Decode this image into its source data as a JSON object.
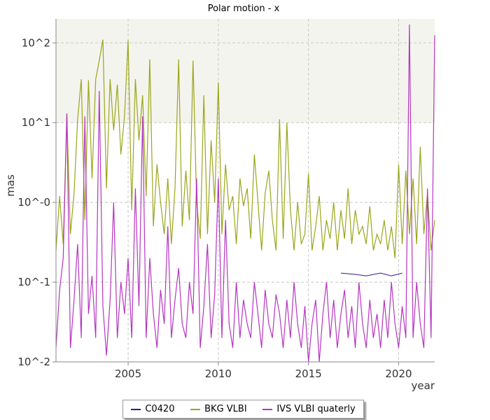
{
  "chart_data": {
    "type": "line",
    "title": "Polar motion - x",
    "xlabel": "year",
    "ylabel": "mas",
    "yscale": "log",
    "xlim": [
      2001.0,
      2022.0
    ],
    "ylim": [
      0.01,
      200
    ],
    "x_ticks": [
      2005,
      2010,
      2015,
      2020
    ],
    "x_tick_labels": [
      "2005",
      "2010",
      "2015",
      "2020"
    ],
    "y_ticks": [
      0.01,
      0.1,
      1,
      10,
      100
    ],
    "y_tick_labels": [
      "10^-2",
      "10^-1",
      "10^-0",
      "10^1",
      "10^2"
    ],
    "grid": true,
    "shaded_band": [
      10,
      200
    ],
    "legend_position": "bottom",
    "series": [
      {
        "name": "C0420",
        "color": "#2e1a8e",
        "points": [
          [
            2016.8,
            0.13
          ],
          [
            2017.6,
            0.125
          ],
          [
            2018.2,
            0.12
          ],
          [
            2019.0,
            0.13
          ],
          [
            2019.6,
            0.12
          ],
          [
            2020.2,
            0.13
          ]
        ]
      },
      {
        "name": "BKG VLBI",
        "color": "#9aa61a",
        "points": [
          [
            2001.0,
            0.25
          ],
          [
            2001.2,
            1.2
          ],
          [
            2001.4,
            0.3
          ],
          [
            2001.6,
            13.0
          ],
          [
            2001.8,
            0.4
          ],
          [
            2002.0,
            1.3
          ],
          [
            2002.2,
            11.0
          ],
          [
            2002.4,
            35.0
          ],
          [
            2002.6,
            0.6
          ],
          [
            2002.8,
            34.0
          ],
          [
            2003.0,
            2.0
          ],
          [
            2003.2,
            35.0
          ],
          [
            2003.4,
            60.0
          ],
          [
            2003.6,
            110.0
          ],
          [
            2003.8,
            1.5
          ],
          [
            2004.0,
            35.0
          ],
          [
            2004.2,
            8.0
          ],
          [
            2004.4,
            30.0
          ],
          [
            2004.6,
            4.0
          ],
          [
            2004.8,
            12.0
          ],
          [
            2005.0,
            108.0
          ],
          [
            2005.2,
            0.8
          ],
          [
            2005.4,
            35.0
          ],
          [
            2005.6,
            6.0
          ],
          [
            2005.8,
            22.0
          ],
          [
            2006.0,
            1.2
          ],
          [
            2006.2,
            62.0
          ],
          [
            2006.4,
            0.5
          ],
          [
            2006.6,
            3.0
          ],
          [
            2006.8,
            1.0
          ],
          [
            2007.0,
            0.4
          ],
          [
            2007.2,
            2.0
          ],
          [
            2007.4,
            0.3
          ],
          [
            2007.6,
            1.5
          ],
          [
            2007.8,
            62.0
          ],
          [
            2008.0,
            0.5
          ],
          [
            2008.2,
            2.5
          ],
          [
            2008.4,
            0.6
          ],
          [
            2008.6,
            60.0
          ],
          [
            2008.8,
            1.0
          ],
          [
            2009.0,
            0.35
          ],
          [
            2009.2,
            22.0
          ],
          [
            2009.4,
            0.4
          ],
          [
            2009.6,
            6.0
          ],
          [
            2009.8,
            1.0
          ],
          [
            2010.0,
            32.0
          ],
          [
            2010.2,
            0.4
          ],
          [
            2010.4,
            3.0
          ],
          [
            2010.6,
            0.8
          ],
          [
            2010.8,
            1.2
          ],
          [
            2011.0,
            0.3
          ],
          [
            2011.2,
            2.0
          ],
          [
            2011.4,
            0.9
          ],
          [
            2011.6,
            1.5
          ],
          [
            2011.8,
            0.35
          ],
          [
            2012.0,
            4.0
          ],
          [
            2012.2,
            1.0
          ],
          [
            2012.4,
            0.25
          ],
          [
            2012.6,
            1.3
          ],
          [
            2012.8,
            2.5
          ],
          [
            2013.0,
            0.6
          ],
          [
            2013.2,
            0.25
          ],
          [
            2013.4,
            11.0
          ],
          [
            2013.6,
            0.35
          ],
          [
            2013.8,
            10.0
          ],
          [
            2014.0,
            0.8
          ],
          [
            2014.2,
            0.25
          ],
          [
            2014.4,
            1.0
          ],
          [
            2014.6,
            0.3
          ],
          [
            2014.8,
            0.4
          ],
          [
            2015.0,
            2.3
          ],
          [
            2015.2,
            0.25
          ],
          [
            2015.4,
            0.5
          ],
          [
            2015.6,
            1.2
          ],
          [
            2015.8,
            0.25
          ],
          [
            2016.0,
            0.6
          ],
          [
            2016.2,
            0.35
          ],
          [
            2016.4,
            1.0
          ],
          [
            2016.6,
            0.25
          ],
          [
            2016.8,
            0.8
          ],
          [
            2017.0,
            0.35
          ],
          [
            2017.2,
            1.5
          ],
          [
            2017.4,
            0.3
          ],
          [
            2017.6,
            0.8
          ],
          [
            2017.8,
            0.4
          ],
          [
            2018.0,
            0.5
          ],
          [
            2018.2,
            0.3
          ],
          [
            2018.4,
            0.9
          ],
          [
            2018.6,
            0.25
          ],
          [
            2018.8,
            0.4
          ],
          [
            2019.0,
            0.3
          ],
          [
            2019.2,
            0.6
          ],
          [
            2019.4,
            0.25
          ],
          [
            2019.6,
            0.5
          ],
          [
            2019.8,
            0.2
          ],
          [
            2020.0,
            3.0
          ],
          [
            2020.2,
            0.3
          ],
          [
            2020.4,
            2.5
          ],
          [
            2020.6,
            0.4
          ],
          [
            2020.8,
            2.0
          ],
          [
            2021.0,
            0.3
          ],
          [
            2021.2,
            5.0
          ],
          [
            2021.4,
            0.4
          ],
          [
            2021.6,
            1.3
          ],
          [
            2021.8,
            0.25
          ],
          [
            2022.0,
            0.6
          ]
        ]
      },
      {
        "name": "IVS VLBI quaterly",
        "color": "#b535c0",
        "points": [
          [
            2001.0,
            0.015
          ],
          [
            2001.2,
            0.08
          ],
          [
            2001.4,
            0.2
          ],
          [
            2001.6,
            13.0
          ],
          [
            2001.8,
            0.015
          ],
          [
            2002.0,
            0.06
          ],
          [
            2002.2,
            0.3
          ],
          [
            2002.4,
            0.02
          ],
          [
            2002.6,
            12.0
          ],
          [
            2002.8,
            0.04
          ],
          [
            2003.0,
            0.12
          ],
          [
            2003.2,
            0.02
          ],
          [
            2003.4,
            25.0
          ],
          [
            2003.6,
            0.05
          ],
          [
            2003.8,
            0.012
          ],
          [
            2004.0,
            0.06
          ],
          [
            2004.2,
            1.0
          ],
          [
            2004.4,
            0.02
          ],
          [
            2004.6,
            0.1
          ],
          [
            2004.8,
            0.04
          ],
          [
            2005.0,
            0.2
          ],
          [
            2005.2,
            0.02
          ],
          [
            2005.4,
            1.5
          ],
          [
            2005.6,
            0.05
          ],
          [
            2005.8,
            12.0
          ],
          [
            2006.0,
            0.02
          ],
          [
            2006.2,
            0.2
          ],
          [
            2006.4,
            0.04
          ],
          [
            2006.6,
            0.015
          ],
          [
            2006.8,
            0.08
          ],
          [
            2007.0,
            0.03
          ],
          [
            2007.2,
            0.5
          ],
          [
            2007.4,
            0.02
          ],
          [
            2007.6,
            0.06
          ],
          [
            2007.8,
            0.15
          ],
          [
            2008.0,
            0.03
          ],
          [
            2008.2,
            0.02
          ],
          [
            2008.4,
            0.1
          ],
          [
            2008.6,
            0.04
          ],
          [
            2008.8,
            2.0
          ],
          [
            2009.0,
            0.015
          ],
          [
            2009.2,
            0.05
          ],
          [
            2009.4,
            0.3
          ],
          [
            2009.6,
            0.02
          ],
          [
            2009.8,
            0.07
          ],
          [
            2010.0,
            2.0
          ],
          [
            2010.2,
            0.02
          ],
          [
            2010.4,
            0.6
          ],
          [
            2010.6,
            0.03
          ],
          [
            2010.8,
            0.015
          ],
          [
            2011.0,
            0.1
          ],
          [
            2011.2,
            0.02
          ],
          [
            2011.4,
            0.06
          ],
          [
            2011.6,
            0.03
          ],
          [
            2011.8,
            0.02
          ],
          [
            2012.0,
            0.1
          ],
          [
            2012.2,
            0.04
          ],
          [
            2012.4,
            0.015
          ],
          [
            2012.6,
            0.08
          ],
          [
            2012.8,
            0.03
          ],
          [
            2013.0,
            0.02
          ],
          [
            2013.2,
            0.07
          ],
          [
            2013.4,
            0.04
          ],
          [
            2013.6,
            0.015
          ],
          [
            2013.8,
            0.06
          ],
          [
            2014.0,
            0.02
          ],
          [
            2014.2,
            0.1
          ],
          [
            2014.4,
            0.03
          ],
          [
            2014.6,
            0.015
          ],
          [
            2014.8,
            0.05
          ],
          [
            2015.0,
            0.01
          ],
          [
            2015.2,
            0.03
          ],
          [
            2015.4,
            0.06
          ],
          [
            2015.6,
            0.01
          ],
          [
            2015.8,
            0.04
          ],
          [
            2016.0,
            0.1
          ],
          [
            2016.2,
            0.02
          ],
          [
            2016.4,
            0.06
          ],
          [
            2016.6,
            0.015
          ],
          [
            2016.8,
            0.04
          ],
          [
            2017.0,
            0.08
          ],
          [
            2017.2,
            0.02
          ],
          [
            2017.4,
            0.05
          ],
          [
            2017.6,
            0.015
          ],
          [
            2017.8,
            0.1
          ],
          [
            2018.0,
            0.03
          ],
          [
            2018.2,
            0.015
          ],
          [
            2018.4,
            0.06
          ],
          [
            2018.6,
            0.02
          ],
          [
            2018.8,
            0.04
          ],
          [
            2019.0,
            0.015
          ],
          [
            2019.2,
            0.06
          ],
          [
            2019.4,
            0.02
          ],
          [
            2019.6,
            0.1
          ],
          [
            2019.8,
            0.03
          ],
          [
            2020.0,
            0.015
          ],
          [
            2020.2,
            0.05
          ],
          [
            2020.4,
            0.02
          ],
          [
            2020.6,
            170.0
          ],
          [
            2020.8,
            0.02
          ],
          [
            2021.0,
            0.1
          ],
          [
            2021.2,
            0.03
          ],
          [
            2021.4,
            0.015
          ],
          [
            2021.6,
            1.5
          ],
          [
            2021.8,
            0.02
          ],
          [
            2022.0,
            125.0
          ]
        ]
      }
    ]
  }
}
